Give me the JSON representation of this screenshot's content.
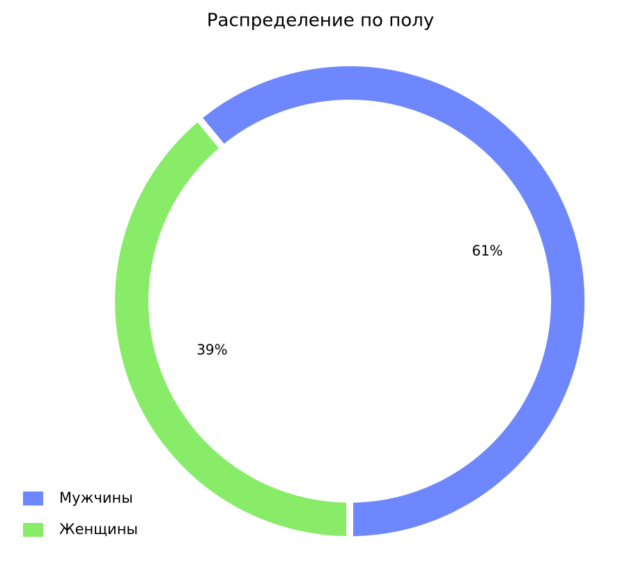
{
  "chart_data": {
    "type": "pie",
    "title": "Распределение по полу",
    "categories": [
      "Мужчины",
      "Женщины"
    ],
    "values": [
      61,
      39
    ],
    "value_labels": [
      "61%",
      "39%"
    ],
    "colors": [
      "#6f87fc",
      "#88ec69"
    ],
    "donut": true,
    "legend": "lower left"
  }
}
